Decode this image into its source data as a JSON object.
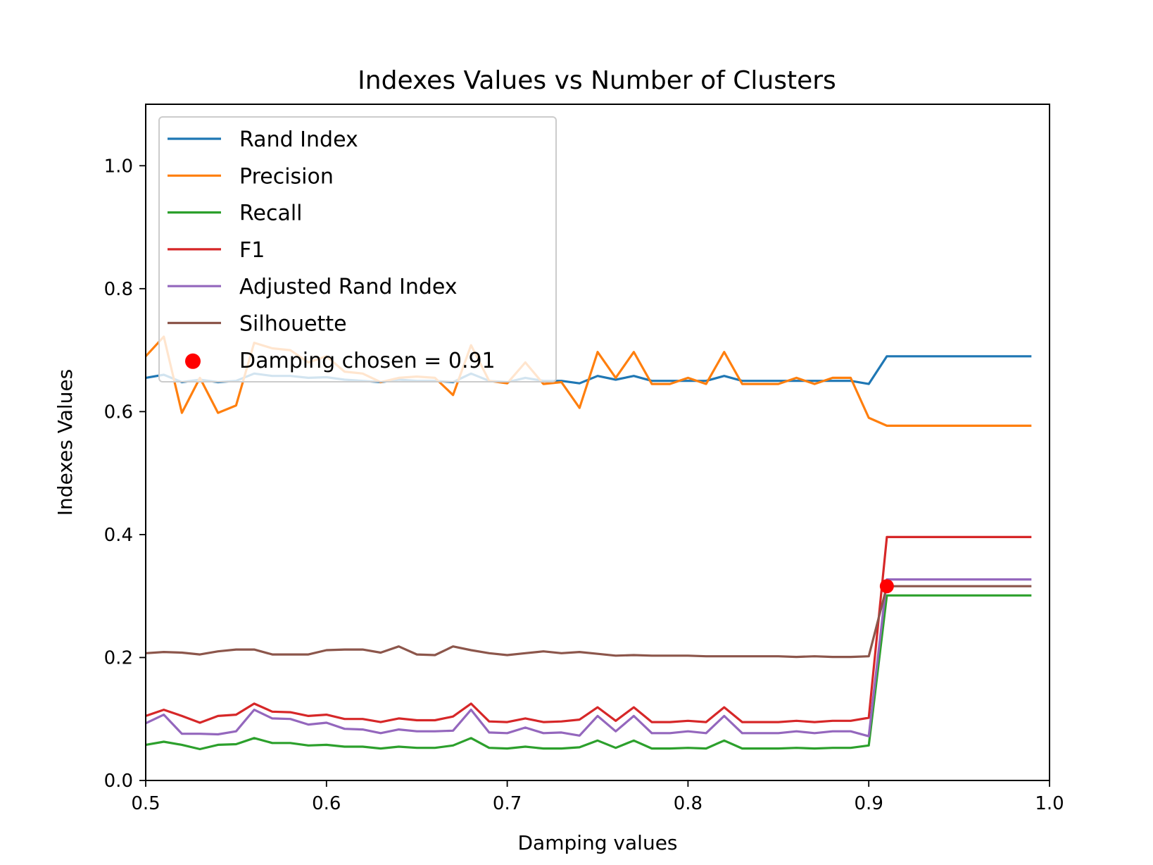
{
  "chart_data": {
    "type": "line",
    "title": "Indexes Values vs Number of Clusters",
    "xlabel": "Damping values",
    "ylabel": "Indexes Values",
    "xlim": [
      0.5,
      1.0
    ],
    "ylim": [
      0.0,
      1.1
    ],
    "xticks": [
      "0.5",
      "0.6",
      "0.7",
      "0.8",
      "0.9",
      "1.0"
    ],
    "yticks": [
      "0.0",
      "0.2",
      "0.4",
      "0.6",
      "0.8",
      "1.0"
    ],
    "grid": false,
    "legend_position": "upper-left",
    "x": [
      0.5,
      0.51,
      0.52,
      0.53,
      0.54,
      0.55,
      0.56,
      0.57,
      0.58,
      0.59,
      0.6,
      0.61,
      0.62,
      0.63,
      0.64,
      0.65,
      0.66,
      0.67,
      0.68,
      0.69,
      0.7,
      0.71,
      0.72,
      0.73,
      0.74,
      0.75,
      0.76,
      0.77,
      0.78,
      0.79,
      0.8,
      0.81,
      0.82,
      0.83,
      0.84,
      0.85,
      0.86,
      0.87,
      0.88,
      0.89,
      0.9,
      0.91,
      0.92,
      0.93,
      0.94,
      0.95,
      0.96,
      0.97,
      0.98,
      0.99
    ],
    "series": [
      {
        "name": "Rand Index",
        "color": "#1f77b4",
        "values": [
          0.655,
          0.66,
          0.648,
          0.652,
          0.648,
          0.65,
          0.662,
          0.658,
          0.658,
          0.655,
          0.656,
          0.652,
          0.65,
          0.648,
          0.652,
          0.65,
          0.65,
          0.648,
          0.662,
          0.65,
          0.648,
          0.655,
          0.65,
          0.65,
          0.646,
          0.658,
          0.652,
          0.658,
          0.65,
          0.65,
          0.65,
          0.65,
          0.658,
          0.65,
          0.65,
          0.65,
          0.65,
          0.65,
          0.65,
          0.65,
          0.645,
          0.69,
          0.69,
          0.69,
          0.69,
          0.69,
          0.69,
          0.69,
          0.69,
          0.69
        ]
      },
      {
        "name": "Precision",
        "color": "#ff7f0e",
        "values": [
          0.69,
          0.722,
          0.598,
          0.655,
          0.598,
          0.61,
          0.712,
          0.703,
          0.7,
          0.68,
          0.69,
          0.665,
          0.662,
          0.648,
          0.655,
          0.657,
          0.655,
          0.627,
          0.708,
          0.65,
          0.646,
          0.68,
          0.645,
          0.648,
          0.606,
          0.697,
          0.655,
          0.697,
          0.645,
          0.645,
          0.655,
          0.645,
          0.697,
          0.645,
          0.645,
          0.645,
          0.655,
          0.645,
          0.655,
          0.655,
          0.59,
          0.577,
          0.577,
          0.577,
          0.577,
          0.577,
          0.577,
          0.577,
          0.577,
          0.577
        ]
      },
      {
        "name": "Recall",
        "color": "#2ca02c",
        "values": [
          0.058,
          0.063,
          0.058,
          0.051,
          0.058,
          0.059,
          0.069,
          0.061,
          0.061,
          0.057,
          0.058,
          0.055,
          0.055,
          0.052,
          0.055,
          0.053,
          0.053,
          0.057,
          0.069,
          0.053,
          0.052,
          0.055,
          0.052,
          0.052,
          0.054,
          0.065,
          0.053,
          0.065,
          0.052,
          0.052,
          0.053,
          0.052,
          0.065,
          0.052,
          0.052,
          0.052,
          0.053,
          0.052,
          0.053,
          0.053,
          0.057,
          0.301,
          0.301,
          0.301,
          0.301,
          0.301,
          0.301,
          0.301,
          0.301,
          0.301
        ]
      },
      {
        "name": "F1",
        "color": "#d62728",
        "values": [
          0.105,
          0.115,
          0.105,
          0.094,
          0.105,
          0.107,
          0.125,
          0.112,
          0.111,
          0.105,
          0.107,
          0.1,
          0.1,
          0.095,
          0.101,
          0.098,
          0.098,
          0.104,
          0.125,
          0.096,
          0.095,
          0.101,
          0.095,
          0.096,
          0.099,
          0.119,
          0.097,
          0.119,
          0.095,
          0.095,
          0.097,
          0.095,
          0.119,
          0.095,
          0.095,
          0.095,
          0.097,
          0.095,
          0.097,
          0.097,
          0.102,
          0.396,
          0.396,
          0.396,
          0.396,
          0.396,
          0.396,
          0.396,
          0.396,
          0.396
        ]
      },
      {
        "name": "Adjusted Rand Index",
        "color": "#9467bd",
        "values": [
          0.093,
          0.107,
          0.076,
          0.076,
          0.075,
          0.08,
          0.115,
          0.101,
          0.1,
          0.091,
          0.094,
          0.084,
          0.083,
          0.077,
          0.083,
          0.08,
          0.08,
          0.081,
          0.115,
          0.078,
          0.077,
          0.086,
          0.077,
          0.078,
          0.073,
          0.105,
          0.08,
          0.105,
          0.077,
          0.077,
          0.08,
          0.077,
          0.105,
          0.077,
          0.077,
          0.077,
          0.08,
          0.077,
          0.08,
          0.08,
          0.072,
          0.327,
          0.327,
          0.327,
          0.327,
          0.327,
          0.327,
          0.327,
          0.327,
          0.327
        ]
      },
      {
        "name": "Silhouette",
        "color": "#8c564b",
        "values": [
          0.207,
          0.209,
          0.208,
          0.205,
          0.21,
          0.213,
          0.213,
          0.205,
          0.205,
          0.205,
          0.212,
          0.213,
          0.213,
          0.208,
          0.218,
          0.205,
          0.204,
          0.218,
          0.212,
          0.207,
          0.204,
          0.207,
          0.21,
          0.207,
          0.209,
          0.206,
          0.203,
          0.204,
          0.203,
          0.203,
          0.203,
          0.202,
          0.202,
          0.202,
          0.202,
          0.202,
          0.201,
          0.202,
          0.201,
          0.201,
          0.202,
          0.316,
          0.316,
          0.316,
          0.316,
          0.316,
          0.316,
          0.316,
          0.316,
          0.316
        ]
      }
    ],
    "marker": {
      "name": "Damping chosen = 0.91",
      "x": 0.91,
      "y": 0.316,
      "color": "#ff0000"
    }
  }
}
